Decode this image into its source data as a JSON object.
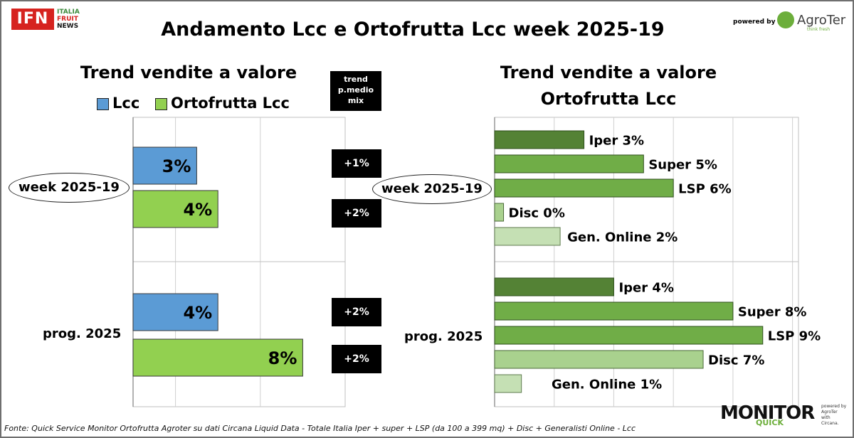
{
  "header": {
    "title": "Andamento Lcc e Ortofrutta Lcc week 2025-19",
    "ifn_logo": "IFN",
    "ifn_side": [
      "ITALIA",
      "FRUIT",
      "NEWS"
    ],
    "powered_by": "powered by",
    "agroter_name": "AgroTer",
    "agroter_tagline": "think fresh"
  },
  "left_panel": {
    "title": "Trend vendite a valore",
    "legend": [
      "Lcc",
      "Ortofrutta Lcc"
    ],
    "trend_header": [
      "trend",
      "p.medio",
      "mix"
    ]
  },
  "right_panel": {
    "title_line1": "Trend vendite a valore",
    "title_line2": "Ortofrutta Lcc"
  },
  "groups": [
    "week 2025-19",
    "prog. 2025"
  ],
  "footer": "Fonte: Quick Service Monitor Ortofrutta Agroter su dati Circana Liquid Data - Totale Italia Iper + super + LSP (da 100 a 399 mq) + Disc + Generalisti Online - Lcc",
  "monitor_logo": {
    "word": "MONITOR",
    "sub": "QUICK",
    "side_lines": [
      "powered by",
      "AgroTer",
      "with",
      "Circana."
    ]
  },
  "colors": {
    "lcc": "#5b9bd5",
    "ortofrutta": "#92d050",
    "iper": "#548235",
    "super": "#70ad47",
    "lsp": "#70ad47",
    "disc": "#a9d18e",
    "online": "#c5e0b4",
    "ifn_red": "#d6231f",
    "agroter_green": "#6cae3b"
  },
  "chart_data": [
    {
      "type": "bar",
      "orientation": "horizontal",
      "categories": [
        "week 2025-19",
        "prog. 2025"
      ],
      "series": [
        {
          "name": "Lcc",
          "values": [
            3,
            4
          ],
          "labels": [
            "3%",
            "4%"
          ]
        },
        {
          "name": "Ortofrutta Lcc",
          "values": [
            4,
            8
          ],
          "labels": [
            "4%",
            "8%"
          ]
        }
      ],
      "trend_p_medio_mix": [
        [
          "+1%",
          "+2%"
        ],
        [
          "+2%",
          "+2%"
        ]
      ],
      "xlim": [
        0,
        10
      ],
      "grid": true
    },
    {
      "type": "bar",
      "orientation": "horizontal",
      "categories": [
        "week 2025-19",
        "prog. 2025"
      ],
      "channels": [
        "Iper",
        "Super",
        "LSP",
        "Disc",
        "Gen. Online"
      ],
      "series": [
        {
          "name": "Iper",
          "values": [
            3,
            4
          ],
          "labels": [
            "Iper 3%",
            "Iper 4%"
          ]
        },
        {
          "name": "Super",
          "values": [
            5,
            8
          ],
          "labels": [
            "Super 5%",
            "Super 8%"
          ]
        },
        {
          "name": "LSP",
          "values": [
            6,
            9
          ],
          "labels": [
            "LSP 6%",
            "LSP 9%"
          ]
        },
        {
          "name": "Disc",
          "values": [
            0.3,
            7
          ],
          "labels": [
            "Disc 0%",
            "Disc 7%"
          ]
        },
        {
          "name": "Gen. Online",
          "values": [
            2.2,
            0.9
          ],
          "labels": [
            "Gen. Online 2%",
            "Gen. Online 1%"
          ]
        }
      ],
      "xlim": [
        0,
        10.2
      ],
      "grid": true
    }
  ]
}
